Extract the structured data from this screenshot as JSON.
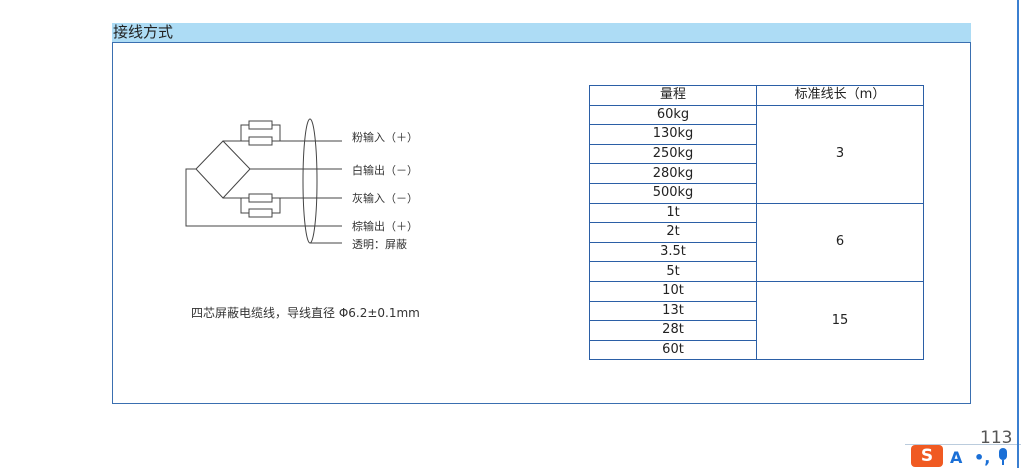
{
  "section_title": "接线方式",
  "diagram": {
    "labels": [
      "粉输入（＋）",
      "白输出（－）",
      "灰输入（－）",
      "棕输出（＋）",
      "透明：屏蔽"
    ],
    "caption": "四芯屏蔽电缆线，导线直径 Φ6.2±0.1mm"
  },
  "table": {
    "headers": [
      "量程",
      "标准线长（m）"
    ],
    "groups": [
      {
        "ranges": [
          "60kg",
          "130kg",
          "250kg",
          "280kg",
          "500kg"
        ],
        "length": "3"
      },
      {
        "ranges": [
          "1t",
          "2t",
          "3.5t",
          "5t"
        ],
        "length": "6"
      },
      {
        "ranges": [
          "10t",
          "13t",
          "28t",
          "60t"
        ],
        "length": "15"
      }
    ]
  },
  "page_number": "113",
  "ime": {
    "logo": "S",
    "mode": "A",
    "punct": "•,",
    "mic_icon": "microphone-icon"
  },
  "colors": {
    "header_bg": "#addcf5",
    "border": "#3a6fb0"
  }
}
